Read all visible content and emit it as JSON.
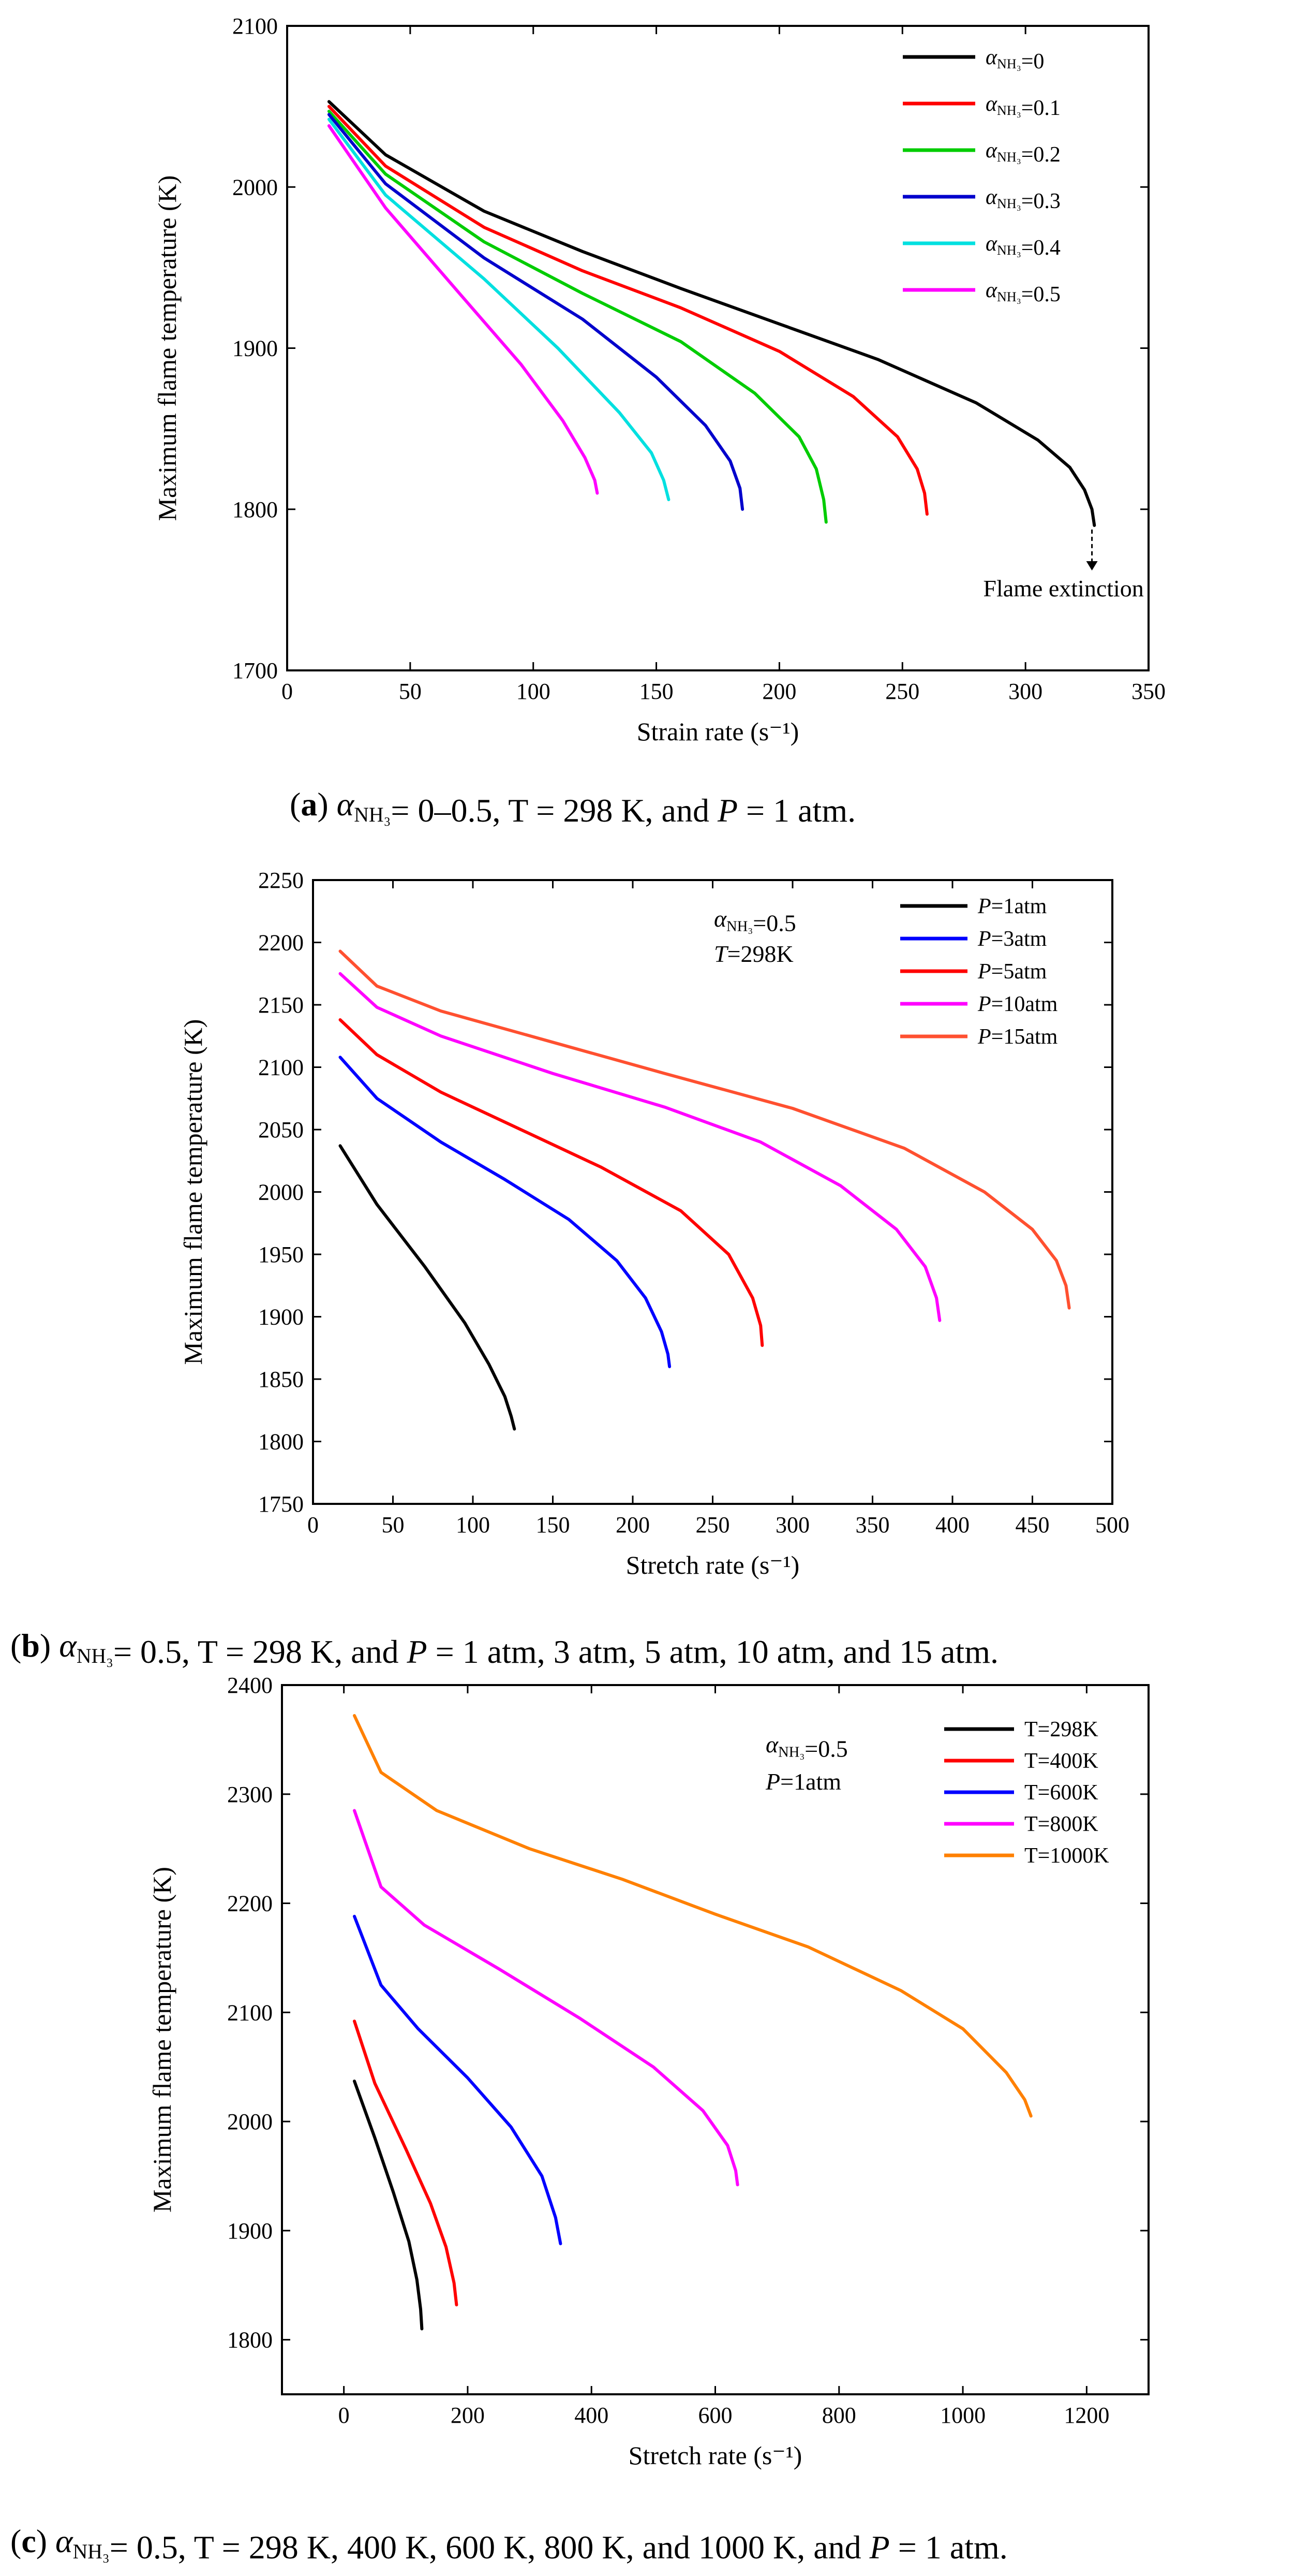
{
  "chart_data": [
    {
      "type": "line",
      "panel": "a",
      "xlabel": "Strain rate (s⁻¹)",
      "ylabel": "Maximum flame temperature (K)",
      "xlim": [
        0,
        350
      ],
      "ylim": [
        1700,
        2100
      ],
      "xticks": [
        0,
        50,
        100,
        150,
        200,
        250,
        300,
        350
      ],
      "yticks": [
        1700,
        1800,
        1900,
        2000,
        2100
      ],
      "grid": false,
      "legend_position": "top-right",
      "caption": {
        "label": "a",
        "text": "αNH₃= 0–0.5, T = 298 K, and P = 1 atm."
      },
      "annotations": [
        {
          "text": "Flame extinction",
          "x": 327,
          "y_from": 1790,
          "y_to": 1762
        }
      ],
      "series": [
        {
          "name": "αNH₃=0",
          "color": "#000000",
          "x": [
            17,
            40,
            80,
            120,
            160,
            200,
            240,
            280,
            305,
            318,
            324,
            327,
            328
          ],
          "y": [
            2053,
            2020,
            1985,
            1960,
            1937,
            1915,
            1893,
            1866,
            1843,
            1826,
            1812,
            1800,
            1790
          ]
        },
        {
          "name": "αNH₃=0.1",
          "color": "#ff0000",
          "x": [
            17,
            40,
            80,
            120,
            160,
            200,
            230,
            248,
            256,
            259,
            260
          ],
          "y": [
            2050,
            2013,
            1975,
            1948,
            1925,
            1898,
            1870,
            1845,
            1825,
            1810,
            1797
          ]
        },
        {
          "name": "αNH₃=0.2",
          "color": "#00cc00",
          "x": [
            17,
            40,
            80,
            120,
            160,
            190,
            208,
            215,
            218,
            219
          ],
          "y": [
            2047,
            2008,
            1966,
            1934,
            1904,
            1872,
            1845,
            1825,
            1806,
            1792
          ]
        },
        {
          "name": "αNH₃=0.3",
          "color": "#0000cc",
          "x": [
            17,
            40,
            80,
            120,
            150,
            170,
            180,
            184,
            185
          ],
          "y": [
            2045,
            2002,
            1956,
            1918,
            1882,
            1852,
            1830,
            1813,
            1800
          ]
        },
        {
          "name": "αNH₃=0.4",
          "color": "#00e0e0",
          "x": [
            17,
            40,
            80,
            110,
            135,
            148,
            153,
            155
          ],
          "y": [
            2042,
            1995,
            1943,
            1900,
            1860,
            1835,
            1818,
            1806
          ]
        },
        {
          "name": "αNH₃=0.5",
          "color": "#ff00ff",
          "x": [
            17,
            40,
            70,
            95,
            112,
            121,
            125,
            126
          ],
          "y": [
            2038,
            1987,
            1934,
            1890,
            1855,
            1832,
            1818,
            1810
          ]
        }
      ]
    },
    {
      "type": "line",
      "panel": "b",
      "xlabel": "Stretch rate (s⁻¹)",
      "ylabel": "Maximum flame temperature (K)",
      "xlim": [
        0,
        500
      ],
      "ylim": [
        1750,
        2250
      ],
      "xticks": [
        0,
        50,
        100,
        150,
        200,
        250,
        300,
        350,
        400,
        450,
        500
      ],
      "yticks": [
        1750,
        1800,
        1850,
        1900,
        1950,
        2000,
        2050,
        2100,
        2150,
        2200,
        2250
      ],
      "grid": false,
      "legend_position": "top-right",
      "conditions": [
        "αNH₃=0.5",
        "T=298K"
      ],
      "caption": {
        "label": "b",
        "text": "αNH₃= 0.5, T = 298 K, and P = 1 atm, 3 atm, 5 atm, 10 atm, and 15 atm."
      },
      "series": [
        {
          "name": "P=1atm",
          "color": "#000000",
          "x": [
            17,
            40,
            70,
            95,
            110,
            120,
            124,
            126
          ],
          "y": [
            2037,
            1990,
            1940,
            1895,
            1862,
            1836,
            1820,
            1810
          ]
        },
        {
          "name": "P=3atm",
          "color": "#0000ff",
          "x": [
            17,
            40,
            80,
            120,
            160,
            190,
            208,
            218,
            222,
            223
          ],
          "y": [
            2108,
            2075,
            2040,
            2010,
            1978,
            1945,
            1915,
            1888,
            1870,
            1860
          ]
        },
        {
          "name": "P=5atm",
          "color": "#ff0000",
          "x": [
            17,
            40,
            80,
            130,
            180,
            230,
            260,
            275,
            280,
            281
          ],
          "y": [
            2138,
            2110,
            2080,
            2050,
            2020,
            1985,
            1950,
            1915,
            1893,
            1877
          ]
        },
        {
          "name": "P=10atm",
          "color": "#ff00ff",
          "x": [
            17,
            40,
            80,
            150,
            220,
            280,
            330,
            365,
            383,
            390,
            392
          ],
          "y": [
            2175,
            2148,
            2125,
            2095,
            2068,
            2040,
            2005,
            1970,
            1940,
            1915,
            1897
          ]
        },
        {
          "name": "P=15atm",
          "color": "#ff5030",
          "x": [
            17,
            40,
            80,
            150,
            220,
            300,
            370,
            420,
            450,
            465,
            471,
            473
          ],
          "y": [
            2193,
            2165,
            2145,
            2120,
            2095,
            2067,
            2035,
            2000,
            1970,
            1945,
            1925,
            1907
          ]
        }
      ]
    },
    {
      "type": "line",
      "panel": "c",
      "xlabel": "Stretch rate (s⁻¹)",
      "ylabel": "Maximum flame temperature (K)",
      "xlim": [
        -100,
        1300
      ],
      "ylim": [
        1750,
        2400
      ],
      "xticks": [
        0,
        200,
        400,
        600,
        800,
        1000,
        1200
      ],
      "yticks": [
        1800,
        1900,
        2000,
        2100,
        2200,
        2300,
        2400
      ],
      "grid": false,
      "legend_position": "top-right",
      "conditions": [
        "αNH₃=0.5",
        "P=1atm"
      ],
      "caption": {
        "label": "c",
        "text": "αNH₃= 0.5, T = 298 K, 400 K, 600 K, 800 K, and 1000 K, and P = 1 atm."
      },
      "series": [
        {
          "name": "T=298K",
          "color": "#000000",
          "x": [
            17,
            50,
            80,
            105,
            118,
            124,
            126
          ],
          "y": [
            2037,
            1985,
            1935,
            1890,
            1855,
            1828,
            1810
          ]
        },
        {
          "name": "T=400K",
          "color": "#ff0000",
          "x": [
            17,
            50,
            100,
            140,
            165,
            178,
            182
          ],
          "y": [
            2092,
            2035,
            1975,
            1925,
            1885,
            1852,
            1832
          ]
        },
        {
          "name": "T=600K",
          "color": "#0000ff",
          "x": [
            17,
            60,
            120,
            200,
            270,
            320,
            342,
            350
          ],
          "y": [
            2188,
            2125,
            2085,
            2040,
            1995,
            1950,
            1912,
            1888
          ]
        },
        {
          "name": "T=800K",
          "color": "#ff00ff",
          "x": [
            17,
            60,
            130,
            250,
            380,
            500,
            580,
            620,
            633,
            636
          ],
          "y": [
            2285,
            2215,
            2180,
            2140,
            2095,
            2050,
            2010,
            1978,
            1955,
            1942
          ]
        },
        {
          "name": "T=1000K",
          "color": "#ff8000",
          "x": [
            17,
            60,
            150,
            300,
            450,
            600,
            750,
            900,
            1000,
            1070,
            1100,
            1110
          ],
          "y": [
            2372,
            2320,
            2285,
            2250,
            2222,
            2190,
            2160,
            2120,
            2085,
            2045,
            2020,
            2005
          ]
        }
      ]
    }
  ]
}
